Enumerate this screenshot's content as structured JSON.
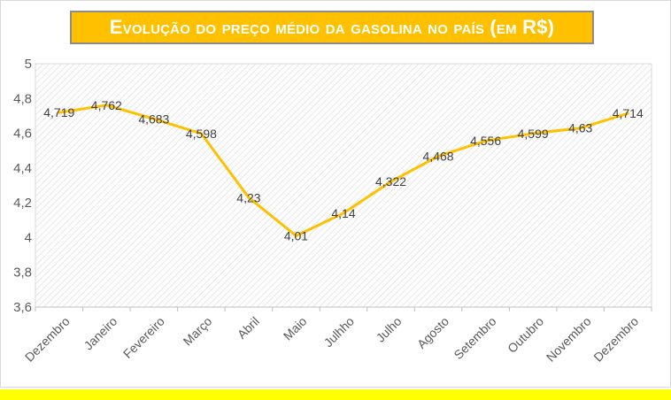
{
  "title": "Evolução do preço médio da gasolina no país (em R$)",
  "colors": {
    "line": "#ffc000",
    "title_bg": "#ffc000",
    "title_text": "#ffffff",
    "bottom_strip": "#ffff00",
    "hatch": "#d9d9d9"
  },
  "chart_data": {
    "type": "line",
    "title": "Evolução do preço médio da gasolina no país (em R$)",
    "categories": [
      "Dezembro",
      "Janeiro",
      "Fevereiro",
      "Março",
      "Abril",
      "Maio",
      "Julhho",
      "Julho",
      "Agosto",
      "Setembro",
      "Outubro",
      "Novembro",
      "Dezembro"
    ],
    "series": [
      {
        "values": [
          4.719,
          4.762,
          4.683,
          4.598,
          4.23,
          4.01,
          4.14,
          4.322,
          4.468,
          4.556,
          4.599,
          4.63,
          4.714
        ]
      }
    ],
    "data_labels": [
      "4,719",
      "4,762",
      "4,683",
      "4,598",
      "4,23",
      "4,01",
      "4,14",
      "4,322",
      "4,468",
      "4,556",
      "4,599",
      "4,63",
      "4,714"
    ],
    "y_ticks": [
      3.6,
      3.8,
      4,
      4.2,
      4.4,
      4.6,
      4.8,
      5
    ],
    "y_tick_labels": [
      "3,6",
      "3,8",
      "4",
      "4,2",
      "4,4",
      "4,6",
      "4,8",
      "5"
    ],
    "ylim": [
      3.6,
      5
    ],
    "xlabel": "",
    "ylabel": "",
    "grid": false,
    "legend": "none",
    "plot_background": "diagonal hatch"
  }
}
